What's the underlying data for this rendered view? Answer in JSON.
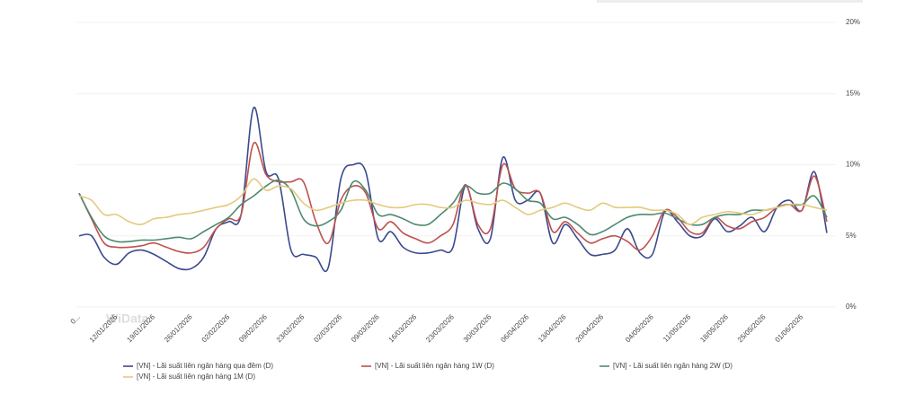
{
  "chart_data": {
    "type": "line",
    "categories": [
      "0...",
      null,
      null,
      "12/01/2026",
      null,
      null,
      "19/01/2026",
      null,
      null,
      "26/01/2026",
      null,
      null,
      "02/02/2026",
      null,
      null,
      "09/02/2026",
      null,
      null,
      "23/02/2026",
      null,
      null,
      "02/03/2026",
      null,
      null,
      "09/03/2026",
      null,
      null,
      "16/03/2026",
      null,
      null,
      "23/03/2026",
      null,
      null,
      "30/03/2026",
      null,
      null,
      "06/04/2026",
      null,
      null,
      "13/04/2026",
      null,
      null,
      "20/04/2026",
      null,
      null,
      null,
      "04/05/2026",
      null,
      null,
      "11/05/2026",
      null,
      null,
      "18/05/2026",
      null,
      null,
      "25/05/2026",
      null,
      null,
      "01/06/2026",
      null,
      null
    ],
    "series": [
      {
        "name": "[VN] - Lãi suất liên ngân hàng qua đêm (D)",
        "color": "#3b4a8e",
        "values": [
          5,
          5,
          3.5,
          3,
          3.8,
          4,
          3.7,
          3.2,
          2.7,
          2.7,
          3.5,
          5.5,
          6,
          6.5,
          14,
          9.5,
          9,
          4,
          3.7,
          3.5,
          2.8,
          9,
          10,
          9.5,
          4.8,
          5.3,
          4.2,
          3.8,
          3.8,
          4,
          4.2,
          8.5,
          5.5,
          4.8,
          10.5,
          7.5,
          7.5,
          8,
          4.5,
          5.8,
          4.8,
          3.7,
          3.7,
          4,
          5.5,
          3.8,
          3.7,
          6.7,
          6,
          5,
          5,
          6.2,
          5.3,
          5.7,
          6.3,
          5.3,
          7,
          7.5,
          6.8,
          9.5,
          5.2
        ]
      },
      {
        "name": "[VN] - Lãi suất liên ngân hàng 1W (D)",
        "color": "#c0504d",
        "values": [
          8,
          6.2,
          4.5,
          4.2,
          4.2,
          4.3,
          4.5,
          4.2,
          3.9,
          3.8,
          4.2,
          5.5,
          6.2,
          6.5,
          11.5,
          9.3,
          8.8,
          8.8,
          8.8,
          6,
          4.5,
          7.5,
          8.5,
          8,
          5.5,
          6,
          5.2,
          4.8,
          4.5,
          5,
          5.8,
          8.6,
          5.8,
          5.5,
          10,
          8.3,
          8,
          8,
          5.3,
          6,
          5.2,
          4.5,
          4.8,
          5,
          4.6,
          4,
          5,
          6.8,
          6.3,
          5.3,
          5.2,
          6.3,
          5.7,
          5.5,
          6,
          6.3,
          7,
          7.2,
          6.8,
          9.2,
          6
        ]
      },
      {
        "name": "[VN] - Lãi suất liên ngân hàng 2W (D)",
        "color": "#4e8a70",
        "values": [
          8,
          6.3,
          5,
          4.6,
          4.6,
          4.7,
          4.7,
          4.8,
          4.9,
          4.8,
          5.3,
          5.8,
          6.3,
          7.2,
          7.8,
          8.5,
          8.9,
          8.2,
          6.2,
          5.7,
          6,
          6.8,
          8.8,
          8.2,
          6.5,
          6.5,
          6.2,
          5.8,
          5.8,
          6.5,
          7.3,
          8.5,
          8,
          8,
          8.7,
          8.3,
          7.5,
          7.3,
          6.2,
          6.3,
          5.8,
          5.1,
          5.3,
          5.8,
          6.3,
          6.5,
          6.5,
          6.6,
          6.2,
          5.8,
          5.8,
          6.3,
          6.5,
          6.5,
          6.8,
          6.8,
          7,
          7.2,
          7.2,
          7.8,
          6.3
        ]
      },
      {
        "name": "[VN] - Lãi suất liên ngân hàng 1M (D)",
        "color": "#e4c97c",
        "values": [
          7.8,
          7.5,
          6.5,
          6.5,
          6,
          5.8,
          6.2,
          6.3,
          6.5,
          6.6,
          6.8,
          7,
          7.2,
          7.8,
          9,
          8.2,
          8.5,
          8.3,
          7.3,
          6.8,
          7,
          7.3,
          7.5,
          7.5,
          7.2,
          7,
          7,
          7.2,
          7.2,
          7,
          7,
          7.5,
          7.3,
          7.2,
          7.5,
          7,
          6.5,
          6.8,
          7,
          7.3,
          7,
          6.8,
          7.3,
          7,
          7,
          7,
          6.8,
          6.8,
          6.5,
          5.8,
          6.3,
          6.5,
          6.7,
          6.6,
          6.5,
          6.8,
          7,
          7.2,
          7.2,
          7,
          6.8
        ]
      }
    ],
    "ylim": [
      0,
      20
    ],
    "yticks": [
      {
        "value": 0,
        "label": "0%"
      },
      {
        "value": 5,
        "label": "5%"
      },
      {
        "value": 10,
        "label": "10%"
      },
      {
        "value": 15,
        "label": "15%"
      },
      {
        "value": 20,
        "label": "20%"
      }
    ],
    "grid": true,
    "watermark": "WiData"
  }
}
